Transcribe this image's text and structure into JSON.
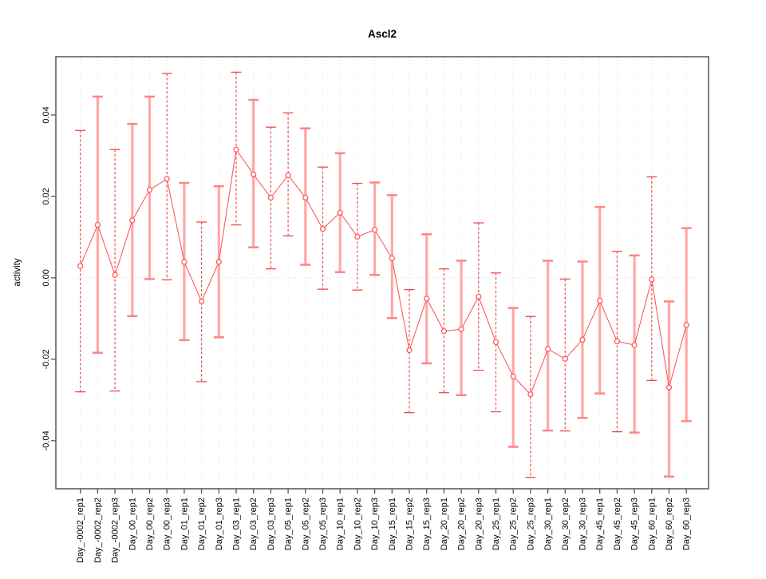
{
  "chart_data": {
    "type": "line",
    "title": "Ascl2",
    "ylabel": "activity",
    "xlabel": "",
    "categories": [
      "Day_-0002_rep1",
      "Day_-0002_rep2",
      "Day_-0002_rep3",
      "Day_00_rep1",
      "Day_00_rep2",
      "Day_00_rep3",
      "Day_01_rep1",
      "Day_01_rep2",
      "Day_01_rep3",
      "Day_03_rep1",
      "Day_03_rep2",
      "Day_03_rep3",
      "Day_05_rep1",
      "Day_05_rep2",
      "Day_05_rep3",
      "Day_10_rep1",
      "Day_10_rep2",
      "Day_10_rep3",
      "Day_15_rep1",
      "Day_15_rep2",
      "Day_15_rep3",
      "Day_20_rep1",
      "Day_20_rep2",
      "Day_20_rep3",
      "Day_25_rep1",
      "Day_25_rep2",
      "Day_25_rep3",
      "Day_30_rep1",
      "Day_30_rep2",
      "Day_30_rep3",
      "Day_45_rep1",
      "Day_45_rep2",
      "Day_45_rep3",
      "Day_60_rep1",
      "Day_60_rep2",
      "Day_60_rep3"
    ],
    "series": [
      {
        "name": "activity",
        "values": [
          0.0029,
          0.013,
          0.0007,
          0.0141,
          0.0216,
          0.0243,
          0.0039,
          -0.0058,
          0.0039,
          0.0315,
          0.0254,
          0.0197,
          0.0252,
          0.0197,
          0.012,
          0.016,
          0.0101,
          0.0118,
          0.0048,
          -0.0178,
          -0.0051,
          -0.0131,
          -0.0126,
          -0.0046,
          -0.0158,
          -0.0242,
          -0.0286,
          -0.0175,
          -0.0199,
          -0.0152,
          -0.0056,
          -0.0156,
          -0.0165,
          -0.0004,
          -0.0269,
          -0.0116
        ]
      }
    ],
    "error_low": [
      -0.028,
      -0.0184,
      -0.0278,
      -0.0094,
      -0.0003,
      -0.0005,
      -0.0153,
      -0.0255,
      -0.0146,
      0.013,
      0.0075,
      0.0022,
      0.0103,
      0.0032,
      -0.0028,
      0.0014,
      -0.003,
      0.0007,
      -0.0099,
      -0.0331,
      -0.021,
      -0.0282,
      -0.0288,
      -0.0227,
      -0.0329,
      -0.0415,
      -0.049,
      -0.0375,
      -0.0376,
      -0.0344,
      -0.0284,
      -0.0378,
      -0.038,
      -0.0252,
      -0.0488,
      -0.0352
    ],
    "error_high": [
      0.0362,
      0.0445,
      0.0315,
      0.0378,
      0.0445,
      0.0502,
      0.0233,
      0.0137,
      0.0225,
      0.0505,
      0.0437,
      0.037,
      0.0405,
      0.0367,
      0.0272,
      0.0306,
      0.0232,
      0.0234,
      0.0203,
      -0.0029,
      0.0107,
      0.0022,
      0.0042,
      0.0135,
      0.0012,
      -0.0074,
      -0.0095,
      0.0042,
      -0.0003,
      0.004,
      0.0174,
      0.0065,
      0.0055,
      0.0248,
      -0.0058,
      0.0122
    ],
    "bar_styles": [
      "dashed",
      "solid",
      "dashed",
      "solid",
      "solid",
      "dashed",
      "solid",
      "dashed",
      "solid",
      "dashed",
      "solid",
      "dashed",
      "dashed",
      "solid",
      "dashed",
      "solid",
      "dashed",
      "solid",
      "solid",
      "dashed",
      "solid",
      "dashed",
      "solid",
      "dashed",
      "dashed",
      "solid",
      "dashed",
      "solid",
      "dashed",
      "solid",
      "solid",
      "dashed",
      "solid",
      "dashed",
      "solid",
      "solid"
    ],
    "yticks": [
      0.04,
      0.02,
      0.0,
      -0.02,
      -0.04
    ],
    "ytick_labels": [
      "0.04",
      "0.02",
      "0.00",
      "-0.02",
      "-0.04"
    ],
    "ylim": [
      -0.0518,
      0.0543
    ],
    "zero_line": true,
    "grid": "vertical-dotted",
    "legend": null,
    "marker": "open-circle",
    "colors": {
      "point": "#ff5050",
      "line": "#ff5a5a",
      "bar_dashed": "#ef4b4b",
      "bar_solid": "#ffa8a8",
      "bar_solid_cap": "#ff8585",
      "grid": "#dedede",
      "axis": "#555555",
      "text": "#000000",
      "background": "#ffffff"
    }
  }
}
